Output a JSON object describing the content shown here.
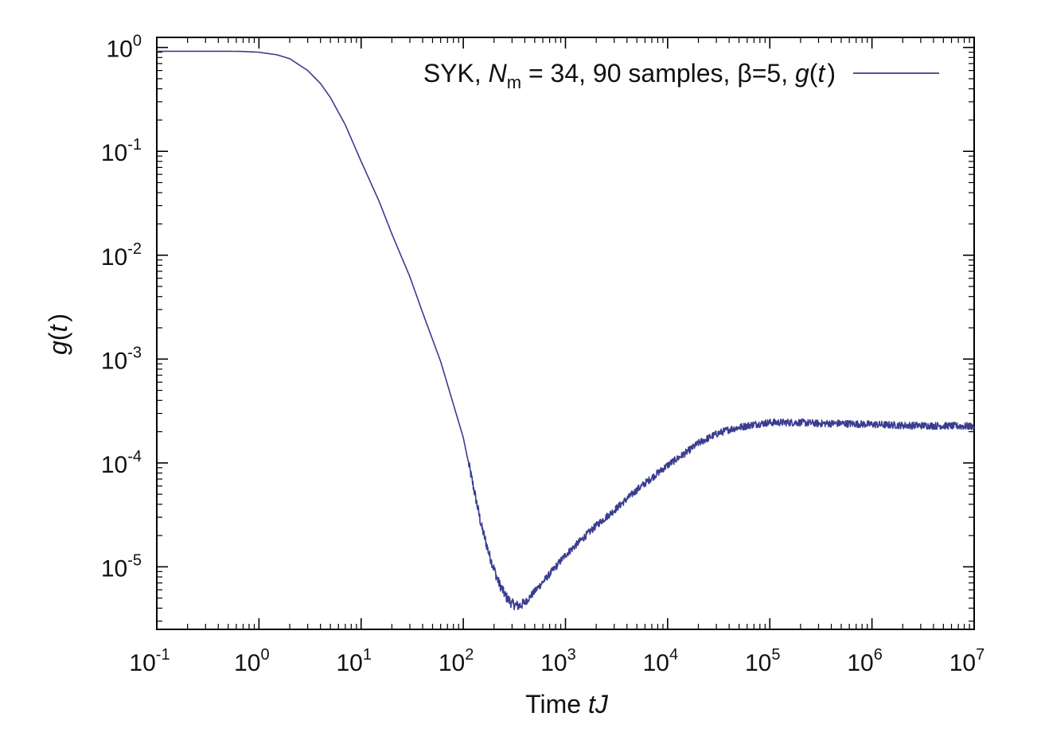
{
  "chart_data": {
    "type": "line",
    "title": "",
    "xlabel": {
      "prefix": "Time ",
      "var": "tJ"
    },
    "ylabel": {
      "var": "g",
      "paren_open": "(",
      "arg": "t",
      "paren_close": ")"
    },
    "x_scale": "log",
    "y_scale": "log",
    "xlim": [
      0.1,
      10000000
    ],
    "ylim": [
      2.5e-06,
      1.25
    ],
    "grid": false,
    "legend_position": "top-right",
    "x_ticks": [
      {
        "base": "10",
        "exp": "-1",
        "value": 0.1
      },
      {
        "base": "10",
        "exp": "0",
        "value": 1
      },
      {
        "base": "10",
        "exp": "1",
        "value": 10
      },
      {
        "base": "10",
        "exp": "2",
        "value": 100
      },
      {
        "base": "10",
        "exp": "3",
        "value": 1000
      },
      {
        "base": "10",
        "exp": "4",
        "value": 10000
      },
      {
        "base": "10",
        "exp": "5",
        "value": 100000
      },
      {
        "base": "10",
        "exp": "6",
        "value": 1000000
      },
      {
        "base": "10",
        "exp": "7",
        "value": 10000000
      }
    ],
    "y_ticks": [
      {
        "base": "10",
        "exp": "0",
        "value": 1
      },
      {
        "base": "10",
        "exp": "-1",
        "value": 0.1
      },
      {
        "base": "10",
        "exp": "-2",
        "value": 0.01
      },
      {
        "base": "10",
        "exp": "-3",
        "value": 0.001
      },
      {
        "base": "10",
        "exp": "-4",
        "value": 0.0001
      },
      {
        "base": "10",
        "exp": "-5",
        "value": 1e-05
      }
    ],
    "series": [
      {
        "name": "SYK, N_m = 34, 90 samples, β=5, g(t)",
        "legend_parts": {
          "a": "SYK, ",
          "N": "N",
          "sub": "m",
          "b": " = 34, 90 samples, β=5, ",
          "g": "g",
          "c": "(",
          "t": "t",
          "d": ")"
        },
        "color": "#3a3d8f",
        "x": [
          0.1,
          0.2,
          0.3,
          0.5,
          0.7,
          1,
          1.5,
          2,
          3,
          4,
          5,
          7,
          10,
          15,
          20,
          30,
          40,
          60,
          100,
          130,
          150,
          180,
          220,
          260,
          300,
          350,
          400,
          500,
          700,
          1000,
          1500,
          2000,
          3000,
          5000,
          7000,
          10000,
          15000,
          20000,
          30000,
          40000,
          50000,
          70000,
          100000,
          200000,
          300000,
          500000,
          1000000,
          2000000,
          5000000,
          10000000
        ],
        "y": [
          0.92,
          0.92,
          0.92,
          0.92,
          0.915,
          0.9,
          0.85,
          0.78,
          0.6,
          0.45,
          0.33,
          0.18,
          0.08,
          0.033,
          0.016,
          0.0062,
          0.0028,
          0.00095,
          0.000175,
          5e-05,
          2.5e-05,
          1.3e-05,
          7.2e-06,
          5.2e-06,
          4.4e-06,
          4.2e-06,
          4.5e-06,
          5.8e-06,
          8.5e-06,
          1.3e-05,
          1.9e-05,
          2.5e-05,
          3.5e-05,
          5.5e-05,
          7.2e-05,
          9.5e-05,
          0.000125,
          0.000155,
          0.00019,
          0.00021,
          0.00022,
          0.000235,
          0.000245,
          0.000245,
          0.00024,
          0.00024,
          0.000235,
          0.00023,
          0.000228,
          0.000225
        ]
      }
    ]
  }
}
